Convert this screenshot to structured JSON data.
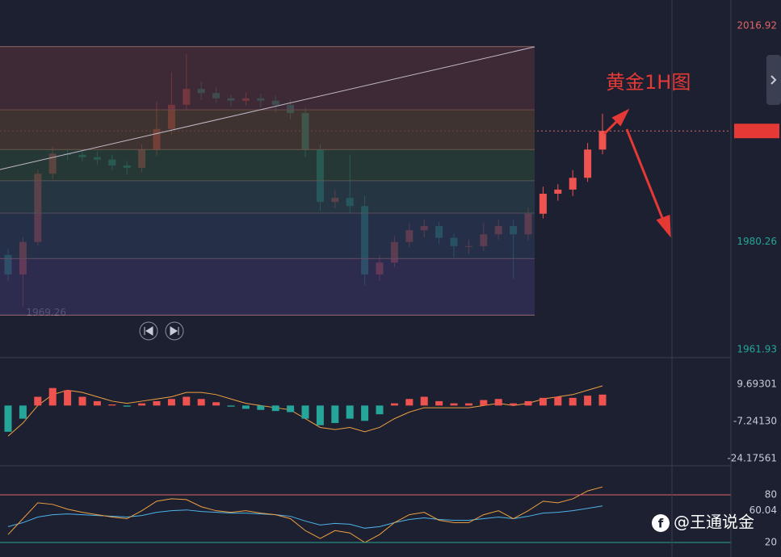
{
  "chart_data": [
    {
      "type": "candlestick",
      "title": "黄金1H图",
      "open": [
        1978.0,
        1974.7,
        1980.2,
        1991.8,
        1995.2,
        1995.0,
        1994.6,
        1994.2,
        1993.2,
        1992.8,
        1995.9,
        1999.4,
        2003.5,
        2006.2,
        2005.5,
        2004.6,
        2004.2,
        2004.6,
        2004.2,
        2003.5,
        2002.1,
        1995.9,
        1987.0,
        1987.7,
        1986.3,
        1974.7,
        1976.7,
        1980.2,
        1982.2,
        1982.9,
        1980.9,
        1979.5,
        1979.5,
        1981.5,
        1982.9,
        1981.5,
        1985.0,
        1988.4,
        1989.1,
        1991.1,
        1995.9
      ],
      "high": [
        1979.0,
        1981.0,
        1992.5,
        1996.4,
        1996.0,
        1995.8,
        1995.6,
        1995.0,
        1994.0,
        1996.8,
        2004.0,
        2009.0,
        2012.1,
        2007.4,
        2006.4,
        2005.2,
        2005.6,
        2005.4,
        2005.0,
        2004.4,
        2003.0,
        1996.8,
        1989.0,
        1995.0,
        1988.0,
        1978.0,
        1981.2,
        1983.4,
        1984.0,
        1983.6,
        1981.6,
        1980.6,
        1983.5,
        1984.0,
        1984.0,
        1986.0,
        1989.6,
        1990.0,
        1992.4,
        1997.0,
        2002.0
      ],
      "low": [
        1973.5,
        1969.26,
        1979.6,
        1990.9,
        1994.1,
        1993.8,
        1993.3,
        1992.4,
        1991.6,
        1992.0,
        1994.8,
        1998.5,
        2002.6,
        2004.3,
        2003.8,
        2003.2,
        2003.4,
        2003.1,
        2002.3,
        2001.0,
        1994.6,
        1985.5,
        1985.9,
        1985.0,
        1972.8,
        1973.6,
        1975.9,
        1979.3,
        1981.0,
        1979.8,
        1977.6,
        1978.2,
        1978.7,
        1980.6,
        1974.0,
        1980.5,
        1984.2,
        1987.2,
        1988.0,
        1990.4,
        1995.1
      ],
      "close": [
        1974.7,
        1980.2,
        1991.8,
        1995.2,
        1995.0,
        1994.6,
        1994.2,
        1993.2,
        1992.8,
        1995.9,
        1999.4,
        2003.5,
        2006.2,
        2005.5,
        2004.6,
        2004.2,
        2004.6,
        2004.2,
        2003.5,
        2002.1,
        1995.9,
        1987.0,
        1987.7,
        1986.3,
        1974.7,
        1976.7,
        1980.2,
        1982.2,
        1982.9,
        1980.9,
        1979.5,
        1979.5,
        1981.5,
        1982.9,
        1981.5,
        1985.0,
        1988.4,
        1989.1,
        1991.1,
        1995.9,
        1999.06
      ],
      "up_color": "#ef5350",
      "down_color": "#26a69a",
      "levels": [
        2013.35,
        2002.65,
        1995.9,
        1990.6,
        1985.1,
        1977.4,
        1967.8
      ],
      "ylim": [
        1960.7,
        2021.3
      ],
      "yticks": [
        2016.92,
        1980.26,
        1961.93
      ]
    },
    {
      "type": "macd",
      "histogram": [
        -12,
        -6,
        4,
        8,
        7,
        4,
        2,
        0.5,
        -0.5,
        1,
        2,
        3,
        4,
        3,
        1.5,
        -0.5,
        -1.5,
        -2,
        -2.5,
        -3,
        -6,
        -9,
        -8,
        -6,
        -7,
        -4,
        1,
        3,
        4,
        2,
        1,
        1,
        2.5,
        3,
        1,
        2,
        3.5,
        4,
        3.5,
        4.5,
        5
      ],
      "line": [
        -14,
        -8,
        0,
        5,
        7,
        6,
        4,
        2,
        1,
        2,
        3,
        4,
        6,
        6,
        5,
        3,
        1,
        0,
        -1,
        -2,
        -6,
        -10,
        -11,
        -10,
        -12,
        -10,
        -6,
        -3,
        -1,
        -1,
        -1,
        -1,
        0,
        1,
        0,
        1,
        3,
        4,
        5,
        7,
        9
      ],
      "line_color": "#f0a040",
      "ylim": [
        -26.8,
        21.16
      ],
      "yticks": [
        9.69301,
        {
          "value": -7.2413,
          "label": "-7.24130"
        },
        -24.17561
      ]
    },
    {
      "type": "rsi",
      "series": [
        {
          "color": "#f0a040",
          "values": [
            30,
            50,
            70,
            68,
            62,
            58,
            55,
            52,
            50,
            60,
            72,
            75,
            74,
            65,
            60,
            58,
            60,
            57,
            55,
            50,
            35,
            25,
            35,
            32,
            20,
            30,
            45,
            55,
            58,
            48,
            45,
            45,
            55,
            60,
            50,
            60,
            72,
            70,
            75,
            85,
            90
          ]
        },
        {
          "color": "#4fb3e8",
          "values": [
            40,
            45,
            52,
            55,
            56,
            55,
            54,
            53,
            52,
            54,
            58,
            60,
            61,
            59,
            58,
            57,
            57,
            56,
            55,
            53,
            47,
            42,
            44,
            43,
            38,
            40,
            45,
            49,
            51,
            49,
            48,
            48,
            50,
            52,
            50,
            53,
            57,
            58,
            60,
            63,
            66
          ]
        }
      ],
      "last_value": 60.04,
      "ylim": [
        1.7,
        115.6
      ],
      "yticks": [
        80,
        20
      ]
    }
  ],
  "watermark": "@王通说金"
}
